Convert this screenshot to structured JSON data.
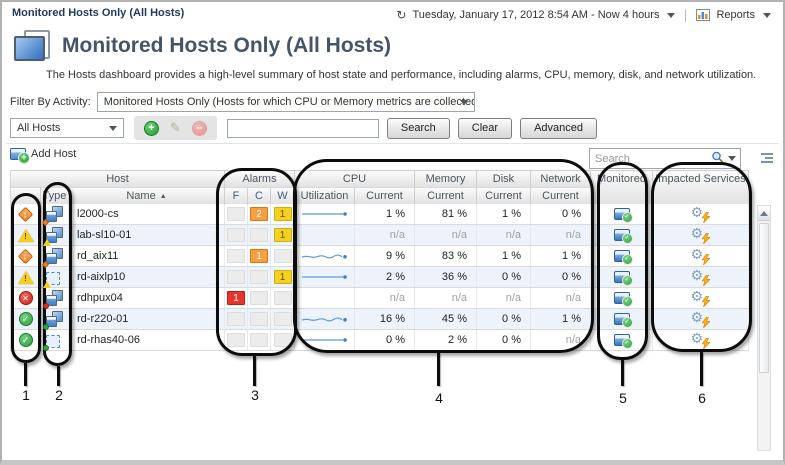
{
  "window": {
    "breadcrumb": "Monitored Hosts Only (All Hosts)",
    "timeframe": "Tuesday, January 17, 2012 8:54 AM - Now 4 hours",
    "reports_label": "Reports"
  },
  "header": {
    "title": "Monitored Hosts Only (All Hosts)",
    "description": "The Hosts dashboard provides a high-level summary of host state and performance, including alarms, CPU, memory, disk, and network utilization."
  },
  "filter": {
    "label": "Filter By Activity:",
    "value": "Monitored Hosts Only (Hosts for which CPU or Memory metrics are collected)"
  },
  "scope": {
    "selected": "All Hosts",
    "search_value": "",
    "search_button": "Search",
    "clear_button": "Clear",
    "advanced_button": "Advanced"
  },
  "toolbar": {
    "add_host_label": "Add Host",
    "search_placeholder": "Search"
  },
  "table": {
    "groups": {
      "host": "Host",
      "alarms": "Alarms",
      "cpu": "CPU",
      "memory": "Memory",
      "disk": "Disk",
      "network": "Network",
      "monitored": "Monitored",
      "impacted": "Impacted Services"
    },
    "subheaders": {
      "type": "Type",
      "name": "Name",
      "sort_indicator": "▲",
      "f": "F",
      "c": "C",
      "w": "W",
      "utilization": "Utilization",
      "current": "Current"
    },
    "rows": [
      {
        "name": "l2000-cs",
        "severity": "critical",
        "host_type": "physical",
        "badge": "critical",
        "alarms": {
          "f": "",
          "c": "2",
          "w": "1"
        },
        "spark": "flat",
        "cpu": "1 %",
        "memory": "81 %",
        "disk": "1 %",
        "network": "0 %"
      },
      {
        "name": "lab-sl10-01",
        "severity": "warning",
        "host_type": "physical",
        "badge": "warning",
        "alarms": {
          "f": "",
          "c": "",
          "w": "1"
        },
        "spark": "none",
        "cpu": "n/a",
        "memory": "n/a",
        "disk": "n/a",
        "network": "n/a"
      },
      {
        "name": "rd_aix11",
        "severity": "critical",
        "host_type": "physical",
        "badge": "critical",
        "alarms": {
          "f": "",
          "c": "1",
          "w": ""
        },
        "spark": "wavy",
        "cpu": "9 %",
        "memory": "83 %",
        "disk": "1 %",
        "network": "1 %"
      },
      {
        "name": "rd-aixlp10",
        "severity": "warning",
        "host_type": "virtual",
        "badge": "warning",
        "alarms": {
          "f": "",
          "c": "",
          "w": "1"
        },
        "spark": "flat",
        "cpu": "2 %",
        "memory": "36 %",
        "disk": "0 %",
        "network": "0 %"
      },
      {
        "name": "rdhpux04",
        "severity": "fatal",
        "host_type": "physical",
        "badge": "fatal",
        "alarms": {
          "f": "1",
          "c": "",
          "w": ""
        },
        "spark": "none",
        "cpu": "n/a",
        "memory": "n/a",
        "disk": "n/a",
        "network": "n/a"
      },
      {
        "name": "rd-r220-01",
        "severity": "normal",
        "host_type": "physical",
        "badge": "normal",
        "alarms": {
          "f": "",
          "c": "",
          "w": ""
        },
        "spark": "wavy",
        "cpu": "16 %",
        "memory": "45 %",
        "disk": "0 %",
        "network": "1 %"
      },
      {
        "name": "rd-rhas40-06",
        "severity": "normal",
        "host_type": "virtual",
        "badge": "normal",
        "alarms": {
          "f": "",
          "c": "",
          "w": ""
        },
        "spark": "flat",
        "cpu": "0 %",
        "memory": "2 %",
        "disk": "0 %",
        "network": "n/a"
      }
    ]
  },
  "annotations": {
    "numbers": [
      "1",
      "2",
      "3",
      "4",
      "5",
      "6"
    ]
  },
  "colors": {
    "alarm_fatal": "#e8352b",
    "alarm_critical": "#f79f3e",
    "alarm_warning": "#f4d11f",
    "sparkline": "#5b9bd5",
    "row_alt": "#edf3fa",
    "title": "#44546a",
    "callout": "#0c0c0c"
  }
}
